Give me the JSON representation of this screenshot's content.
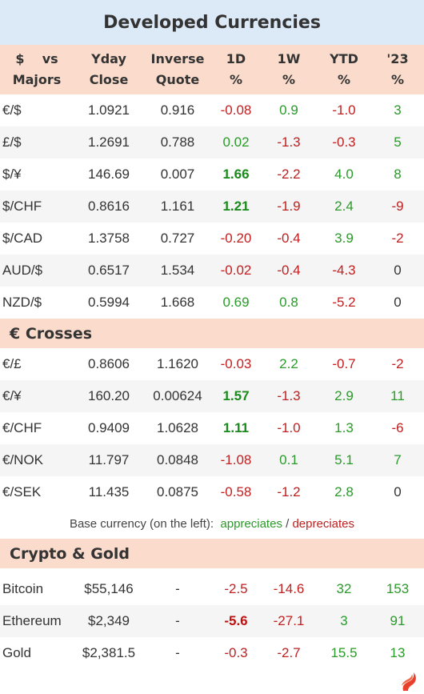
{
  "title": "Developed Currencies",
  "header": {
    "cols": [
      {
        "l1": "$    vs",
        "l2": "Majors"
      },
      {
        "l1": "Yday",
        "l2": "Close"
      },
      {
        "l1": "Inverse",
        "l2": "Quote"
      },
      {
        "l1": "1D",
        "l2": "%"
      },
      {
        "l1": "1W",
        "l2": "%"
      },
      {
        "l1": "YTD",
        "l2": "%"
      },
      {
        "l1": "'23",
        "l2": "%"
      }
    ]
  },
  "majors": [
    {
      "name": "€/$",
      "close": "1.0921",
      "inv": "0.916",
      "d1": "-0.08",
      "w1": "0.9",
      "ytd": "-1.0",
      "y23": "3",
      "d1s": "neg",
      "w1s": "pos",
      "ytds": "neg",
      "y23s": "pos"
    },
    {
      "name": "£/$",
      "close": "1.2691",
      "inv": "0.788",
      "d1": "0.02",
      "w1": "-1.3",
      "ytd": "-0.3",
      "y23": "5",
      "d1s": "pos",
      "w1s": "neg",
      "ytds": "neg",
      "y23s": "pos"
    },
    {
      "name": "$/¥",
      "close": "146.69",
      "inv": "0.007",
      "d1": "1.66",
      "w1": "-2.2",
      "ytd": "4.0",
      "y23": "8",
      "d1s": "strong-pos",
      "w1s": "neg",
      "ytds": "pos",
      "y23s": "pos"
    },
    {
      "name": "$/CHF",
      "close": "0.8616",
      "inv": "1.161",
      "d1": "1.21",
      "w1": "-1.9",
      "ytd": "2.4",
      "y23": "-9",
      "d1s": "strong-pos",
      "w1s": "neg",
      "ytds": "pos",
      "y23s": "neg"
    },
    {
      "name": "$/CAD",
      "close": "1.3758",
      "inv": "0.727",
      "d1": "-0.20",
      "w1": "-0.4",
      "ytd": "3.9",
      "y23": "-2",
      "d1s": "neg",
      "w1s": "neg",
      "ytds": "pos",
      "y23s": "neg"
    },
    {
      "name": "AUD/$",
      "close": "0.6517",
      "inv": "1.534",
      "d1": "-0.02",
      "w1": "-0.4",
      "ytd": "-4.3",
      "y23": "0",
      "d1s": "neg",
      "w1s": "neg",
      "ytds": "neg",
      "y23s": "neu"
    },
    {
      "name": "NZD/$",
      "close": "0.5994",
      "inv": "1.668",
      "d1": "0.69",
      "w1": "0.8",
      "ytd": "-5.2",
      "y23": "0",
      "d1s": "pos",
      "w1s": "pos",
      "ytds": "neg",
      "y23s": "neu"
    }
  ],
  "crosses_title": "€ Crosses",
  "crosses": [
    {
      "name": "€/£",
      "close": "0.8606",
      "inv": "1.1620",
      "d1": "-0.03",
      "w1": "2.2",
      "ytd": "-0.7",
      "y23": "-2",
      "d1s": "neg",
      "w1s": "pos",
      "ytds": "neg",
      "y23s": "neg"
    },
    {
      "name": "€/¥",
      "close": "160.20",
      "inv": "0.00624",
      "d1": "1.57",
      "w1": "-1.3",
      "ytd": "2.9",
      "y23": "11",
      "d1s": "strong-pos",
      "w1s": "neg",
      "ytds": "pos",
      "y23s": "pos"
    },
    {
      "name": "€/CHF",
      "close": "0.9409",
      "inv": "1.0628",
      "d1": "1.11",
      "w1": "-1.0",
      "ytd": "1.3",
      "y23": "-6",
      "d1s": "strong-pos",
      "w1s": "neg",
      "ytds": "pos",
      "y23s": "neg"
    },
    {
      "name": "€/NOK",
      "close": "11.797",
      "inv": "0.0848",
      "d1": "-1.08",
      "w1": "0.1",
      "ytd": "5.1",
      "y23": "7",
      "d1s": "neg",
      "w1s": "pos",
      "ytds": "pos",
      "y23s": "pos"
    },
    {
      "name": "€/SEK",
      "close": "11.435",
      "inv": "0.0875",
      "d1": "-0.58",
      "w1": "-1.2",
      "ytd": "2.8",
      "y23": "0",
      "d1s": "neg",
      "w1s": "neg",
      "ytds": "pos",
      "y23s": "neu"
    }
  ],
  "legend": {
    "prefix": "Base currency (on the left):",
    "up": "appreciates",
    "sep": "/",
    "down": "depreciates"
  },
  "crypto_title": "Crypto & Gold",
  "crypto": [
    {
      "name": "Bitcoin",
      "close": "$55,146",
      "inv": "-",
      "d1": "-2.5",
      "w1": "-14.6",
      "ytd": "32",
      "y23": "153",
      "d1s": "neg",
      "w1s": "neg",
      "ytds": "pos",
      "y23s": "pos"
    },
    {
      "name": "Ethereum",
      "close": "$2,349",
      "inv": "-",
      "d1": "-5.6",
      "w1": "-27.1",
      "ytd": "3",
      "y23": "91",
      "d1s": "strong-neg",
      "w1s": "neg",
      "ytds": "pos",
      "y23s": "pos"
    },
    {
      "name": "Gold",
      "close": "$2,381.5",
      "inv": "-",
      "d1": "-0.3",
      "w1": "-2.7",
      "ytd": "15.5",
      "y23": "13",
      "d1s": "neg",
      "w1s": "neg",
      "ytds": "pos",
      "y23s": "pos"
    }
  ],
  "colors": {
    "title_bg": "#dce9f6",
    "header_bg": "#fbdccc",
    "positive": "#2a9a2a",
    "negative": "#c02020",
    "logo": "#e8402a"
  },
  "logo_icon": "flame-logo-icon"
}
